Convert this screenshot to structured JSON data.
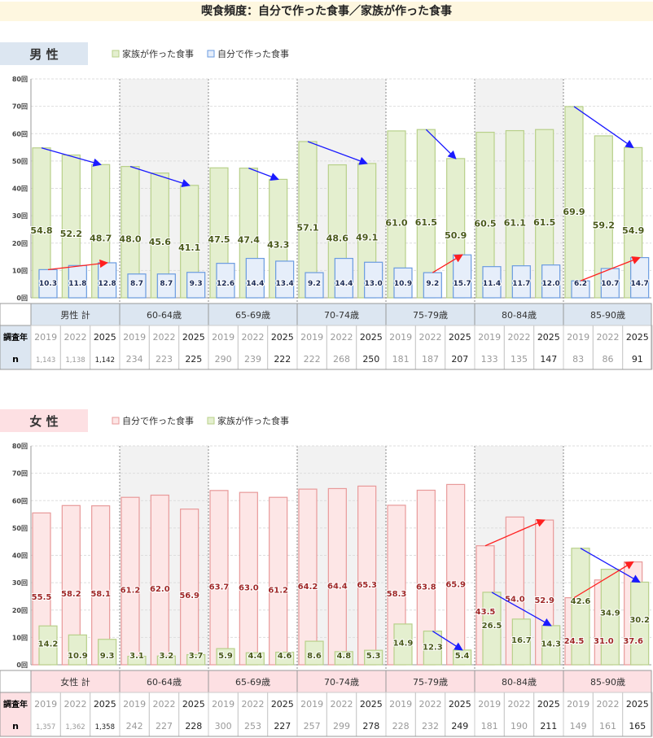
{
  "title": "喫食頻度：自分で作った食事／家族が作った食事",
  "row_labels": {
    "year": "調査年",
    "n": "n"
  },
  "colors": {
    "green_fill": "#e4efcf",
    "green_stroke": "#b8d08a",
    "blue_fill": "#e6eefa",
    "blue_stroke": "#6a9be0",
    "pink_fill": "#fde6e6",
    "pink_stroke": "#e89a9a",
    "male_header": "#dce6f1",
    "female_header": "#fde0e3"
  },
  "chart_data": [
    {
      "type": "bar",
      "section": "男 性",
      "legend": [
        "家族が作った食事",
        "自分で作った食事"
      ],
      "ylim": [
        0,
        80
      ],
      "yticks": [
        "0回",
        "10回",
        "20回",
        "30回",
        "40回",
        "50回",
        "60回",
        "70回",
        "80回"
      ],
      "groups": [
        "男性 計",
        "60-64歳",
        "65-69歳",
        "70-74歳",
        "75-79歳",
        "80-84歳",
        "85-90歳"
      ],
      "years": [
        "2019",
        "2022",
        "2025"
      ],
      "series": [
        {
          "name": "家族が作った食事",
          "color": "green",
          "values": [
            [
              54.8,
              52.2,
              48.7
            ],
            [
              48.0,
              45.6,
              41.1
            ],
            [
              47.5,
              47.4,
              43.3
            ],
            [
              57.1,
              48.6,
              49.1
            ],
            [
              61.0,
              61.5,
              50.9
            ],
            [
              60.5,
              61.1,
              61.5
            ],
            [
              69.9,
              59.2,
              54.9
            ]
          ]
        },
        {
          "name": "自分で作った食事",
          "color": "blue",
          "values": [
            [
              10.3,
              11.8,
              12.8
            ],
            [
              8.7,
              8.7,
              9.3
            ],
            [
              12.6,
              14.4,
              13.4
            ],
            [
              9.2,
              14.4,
              13.0
            ],
            [
              10.9,
              9.2,
              15.7
            ],
            [
              11.4,
              11.7,
              12.0
            ],
            [
              6.2,
              10.7,
              14.7
            ]
          ]
        }
      ],
      "arrows": [
        {
          "series": 0,
          "group": 0,
          "from": 0,
          "to": 2,
          "color": "blue"
        },
        {
          "series": 0,
          "group": 1,
          "from": 0,
          "to": 2,
          "color": "blue"
        },
        {
          "series": 0,
          "group": 2,
          "from": 1,
          "to": 2,
          "color": "blue"
        },
        {
          "series": 0,
          "group": 3,
          "from": 0,
          "to": 2,
          "color": "blue"
        },
        {
          "series": 0,
          "group": 4,
          "from": 1,
          "to": 2,
          "color": "blue"
        },
        {
          "series": 0,
          "group": 6,
          "from": 0,
          "to": 2,
          "color": "blue"
        },
        {
          "series": 1,
          "group": 0,
          "from": 0,
          "to": 2,
          "color": "red"
        },
        {
          "series": 1,
          "group": 4,
          "from": 1,
          "to": 2,
          "color": "red"
        },
        {
          "series": 1,
          "group": 6,
          "from": 0,
          "to": 2,
          "color": "red"
        }
      ],
      "n": [
        [
          "1,143",
          "1,138",
          "1,142"
        ],
        [
          "234",
          "223",
          "225"
        ],
        [
          "290",
          "239",
          "222"
        ],
        [
          "222",
          "268",
          "250"
        ],
        [
          "181",
          "187",
          "207"
        ],
        [
          "133",
          "135",
          "147"
        ],
        [
          "83",
          "86",
          "91"
        ]
      ]
    },
    {
      "type": "bar",
      "section": "女 性",
      "legend": [
        "自分で作った食事",
        "家族が作った食事"
      ],
      "ylim": [
        0,
        80
      ],
      "yticks": [
        "0回",
        "10回",
        "20回",
        "30回",
        "40回",
        "50回",
        "60回",
        "70回",
        "80回"
      ],
      "groups": [
        "女性 計",
        "60-64歳",
        "65-69歳",
        "70-74歳",
        "75-79歳",
        "80-84歳",
        "85-90歳"
      ],
      "years": [
        "2019",
        "2022",
        "2025"
      ],
      "series": [
        {
          "name": "自分で作った食事",
          "color": "pink",
          "values": [
            [
              55.5,
              58.2,
              58.1
            ],
            [
              61.2,
              62.0,
              56.9
            ],
            [
              63.7,
              63.0,
              61.2
            ],
            [
              64.2,
              64.4,
              65.3
            ],
            [
              58.3,
              63.8,
              65.9
            ],
            [
              43.5,
              54.0,
              52.9
            ],
            [
              24.5,
              31.0,
              37.6
            ]
          ]
        },
        {
          "name": "家族が作った食事",
          "color": "green",
          "values": [
            [
              14.2,
              10.9,
              9.3
            ],
            [
              3.1,
              3.2,
              3.7
            ],
            [
              5.9,
              4.4,
              4.6
            ],
            [
              8.6,
              4.8,
              5.3
            ],
            [
              14.9,
              12.3,
              5.4
            ],
            [
              26.5,
              16.7,
              14.3
            ],
            [
              42.6,
              34.9,
              30.2
            ]
          ]
        }
      ],
      "arrows": [
        {
          "series": 1,
          "group": 4,
          "from": 1,
          "to": 2,
          "color": "blue"
        },
        {
          "series": 1,
          "group": 5,
          "from": 0,
          "to": 2,
          "color": "blue"
        },
        {
          "series": 1,
          "group": 6,
          "from": 0,
          "to": 2,
          "color": "blue"
        },
        {
          "series": 0,
          "group": 5,
          "from": 0,
          "to": 2,
          "color": "red"
        },
        {
          "series": 0,
          "group": 6,
          "from": 0,
          "to": 2,
          "color": "red"
        }
      ],
      "n": [
        [
          "1,357",
          "1,362",
          "1,358"
        ],
        [
          "242",
          "227",
          "228"
        ],
        [
          "300",
          "253",
          "227"
        ],
        [
          "257",
          "299",
          "278"
        ],
        [
          "228",
          "232",
          "249"
        ],
        [
          "181",
          "190",
          "211"
        ],
        [
          "149",
          "161",
          "165"
        ]
      ]
    }
  ]
}
